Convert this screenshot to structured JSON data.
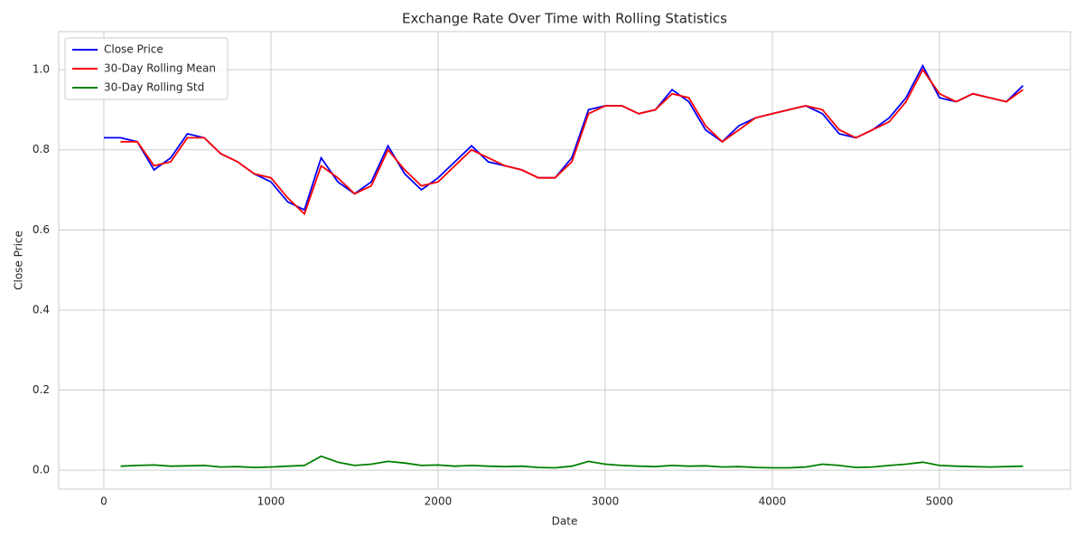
{
  "chart_data": {
    "type": "line",
    "title": "Exchange Rate Over Time with Rolling Statistics",
    "x_label": "Date",
    "y_label": "Close Price",
    "x": [
      0,
      100,
      200,
      300,
      400,
      500,
      600,
      700,
      800,
      900,
      1000,
      1100,
      1200,
      1300,
      1400,
      1500,
      1600,
      1700,
      1800,
      1900,
      2000,
      2100,
      2200,
      2300,
      2400,
      2500,
      2600,
      2700,
      2800,
      2900,
      3000,
      3100,
      3200,
      3300,
      3400,
      3500,
      3600,
      3700,
      3800,
      3900,
      4000,
      4100,
      4200,
      4300,
      4400,
      4500,
      4600,
      4700,
      4800,
      4900,
      5000,
      5100,
      5200,
      5300,
      5400,
      5500
    ],
    "series": [
      {
        "name": "Close Price",
        "color": "#0000ff",
        "values": [
          0.83,
          0.83,
          0.82,
          0.75,
          0.78,
          0.84,
          0.83,
          0.79,
          0.77,
          0.74,
          0.72,
          0.67,
          0.65,
          0.78,
          0.72,
          0.69,
          0.72,
          0.81,
          0.74,
          0.7,
          0.73,
          0.77,
          0.81,
          0.77,
          0.76,
          0.75,
          0.73,
          0.73,
          0.78,
          0.9,
          0.91,
          0.91,
          0.89,
          0.9,
          0.95,
          0.92,
          0.85,
          0.82,
          0.86,
          0.88,
          0.89,
          0.9,
          0.91,
          0.89,
          0.84,
          0.83,
          0.85,
          0.88,
          0.93,
          1.01,
          0.93,
          0.92,
          0.94,
          0.93,
          0.92,
          0.96
        ]
      },
      {
        "name": "30-Day Rolling Mean",
        "color": "#ff0000",
        "values": [
          null,
          0.82,
          0.82,
          0.76,
          0.77,
          0.83,
          0.83,
          0.79,
          0.77,
          0.74,
          0.73,
          0.68,
          0.64,
          0.76,
          0.73,
          0.69,
          0.71,
          0.8,
          0.75,
          0.71,
          0.72,
          0.76,
          0.8,
          0.78,
          0.76,
          0.75,
          0.73,
          0.73,
          0.77,
          0.89,
          0.91,
          0.91,
          0.89,
          0.9,
          0.94,
          0.93,
          0.86,
          0.82,
          0.85,
          0.88,
          0.89,
          0.9,
          0.91,
          0.9,
          0.85,
          0.83,
          0.85,
          0.87,
          0.92,
          1.0,
          0.94,
          0.92,
          0.94,
          0.93,
          0.92,
          0.95
        ]
      },
      {
        "name": "30-Day Rolling Std",
        "color": "#008000",
        "values": [
          null,
          0.01,
          0.012,
          0.013,
          0.01,
          0.011,
          0.012,
          0.008,
          0.009,
          0.007,
          0.008,
          0.01,
          0.012,
          0.035,
          0.02,
          0.012,
          0.015,
          0.022,
          0.018,
          0.012,
          0.013,
          0.01,
          0.012,
          0.01,
          0.009,
          0.01,
          0.007,
          0.006,
          0.01,
          0.022,
          0.015,
          0.012,
          0.01,
          0.009,
          0.012,
          0.01,
          0.011,
          0.008,
          0.009,
          0.007,
          0.006,
          0.006,
          0.008,
          0.015,
          0.012,
          0.007,
          0.008,
          0.012,
          0.015,
          0.02,
          0.012,
          0.01,
          0.009,
          0.008,
          0.009,
          0.01
        ]
      }
    ],
    "xlim": [
      -270,
      5784
    ],
    "ylim": [
      -0.047,
      1.095
    ],
    "xticks": [
      0,
      1000,
      2000,
      3000,
      4000,
      5000
    ],
    "yticks": [
      {
        "value": 0,
        "label": "0.0"
      },
      0.2,
      0.4,
      0.6,
      0.8,
      {
        "value": 1,
        "label": "1.0"
      }
    ],
    "grid": true,
    "legend": "upper left"
  }
}
